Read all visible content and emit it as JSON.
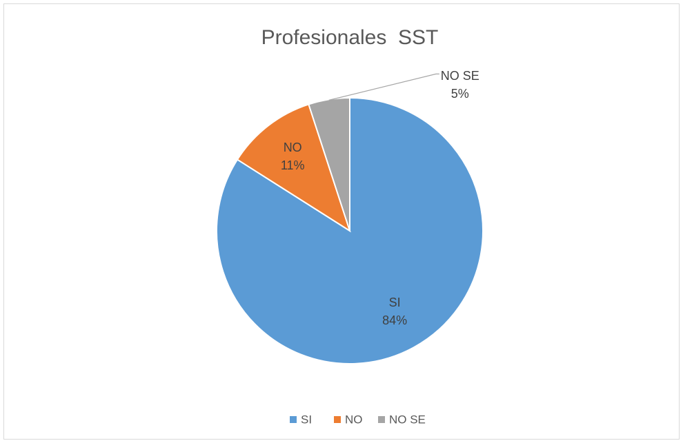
{
  "chart_data": {
    "type": "pie",
    "title": "Profesionales  SST",
    "categories": [
      "SI",
      "NO",
      "NO SE"
    ],
    "values": [
      84,
      11,
      5
    ],
    "value_labels": [
      "84%",
      "11%",
      "5%"
    ],
    "colors": [
      "#5b9bd5",
      "#ed7d31",
      "#a5a5a5"
    ],
    "legend": "bottom"
  }
}
